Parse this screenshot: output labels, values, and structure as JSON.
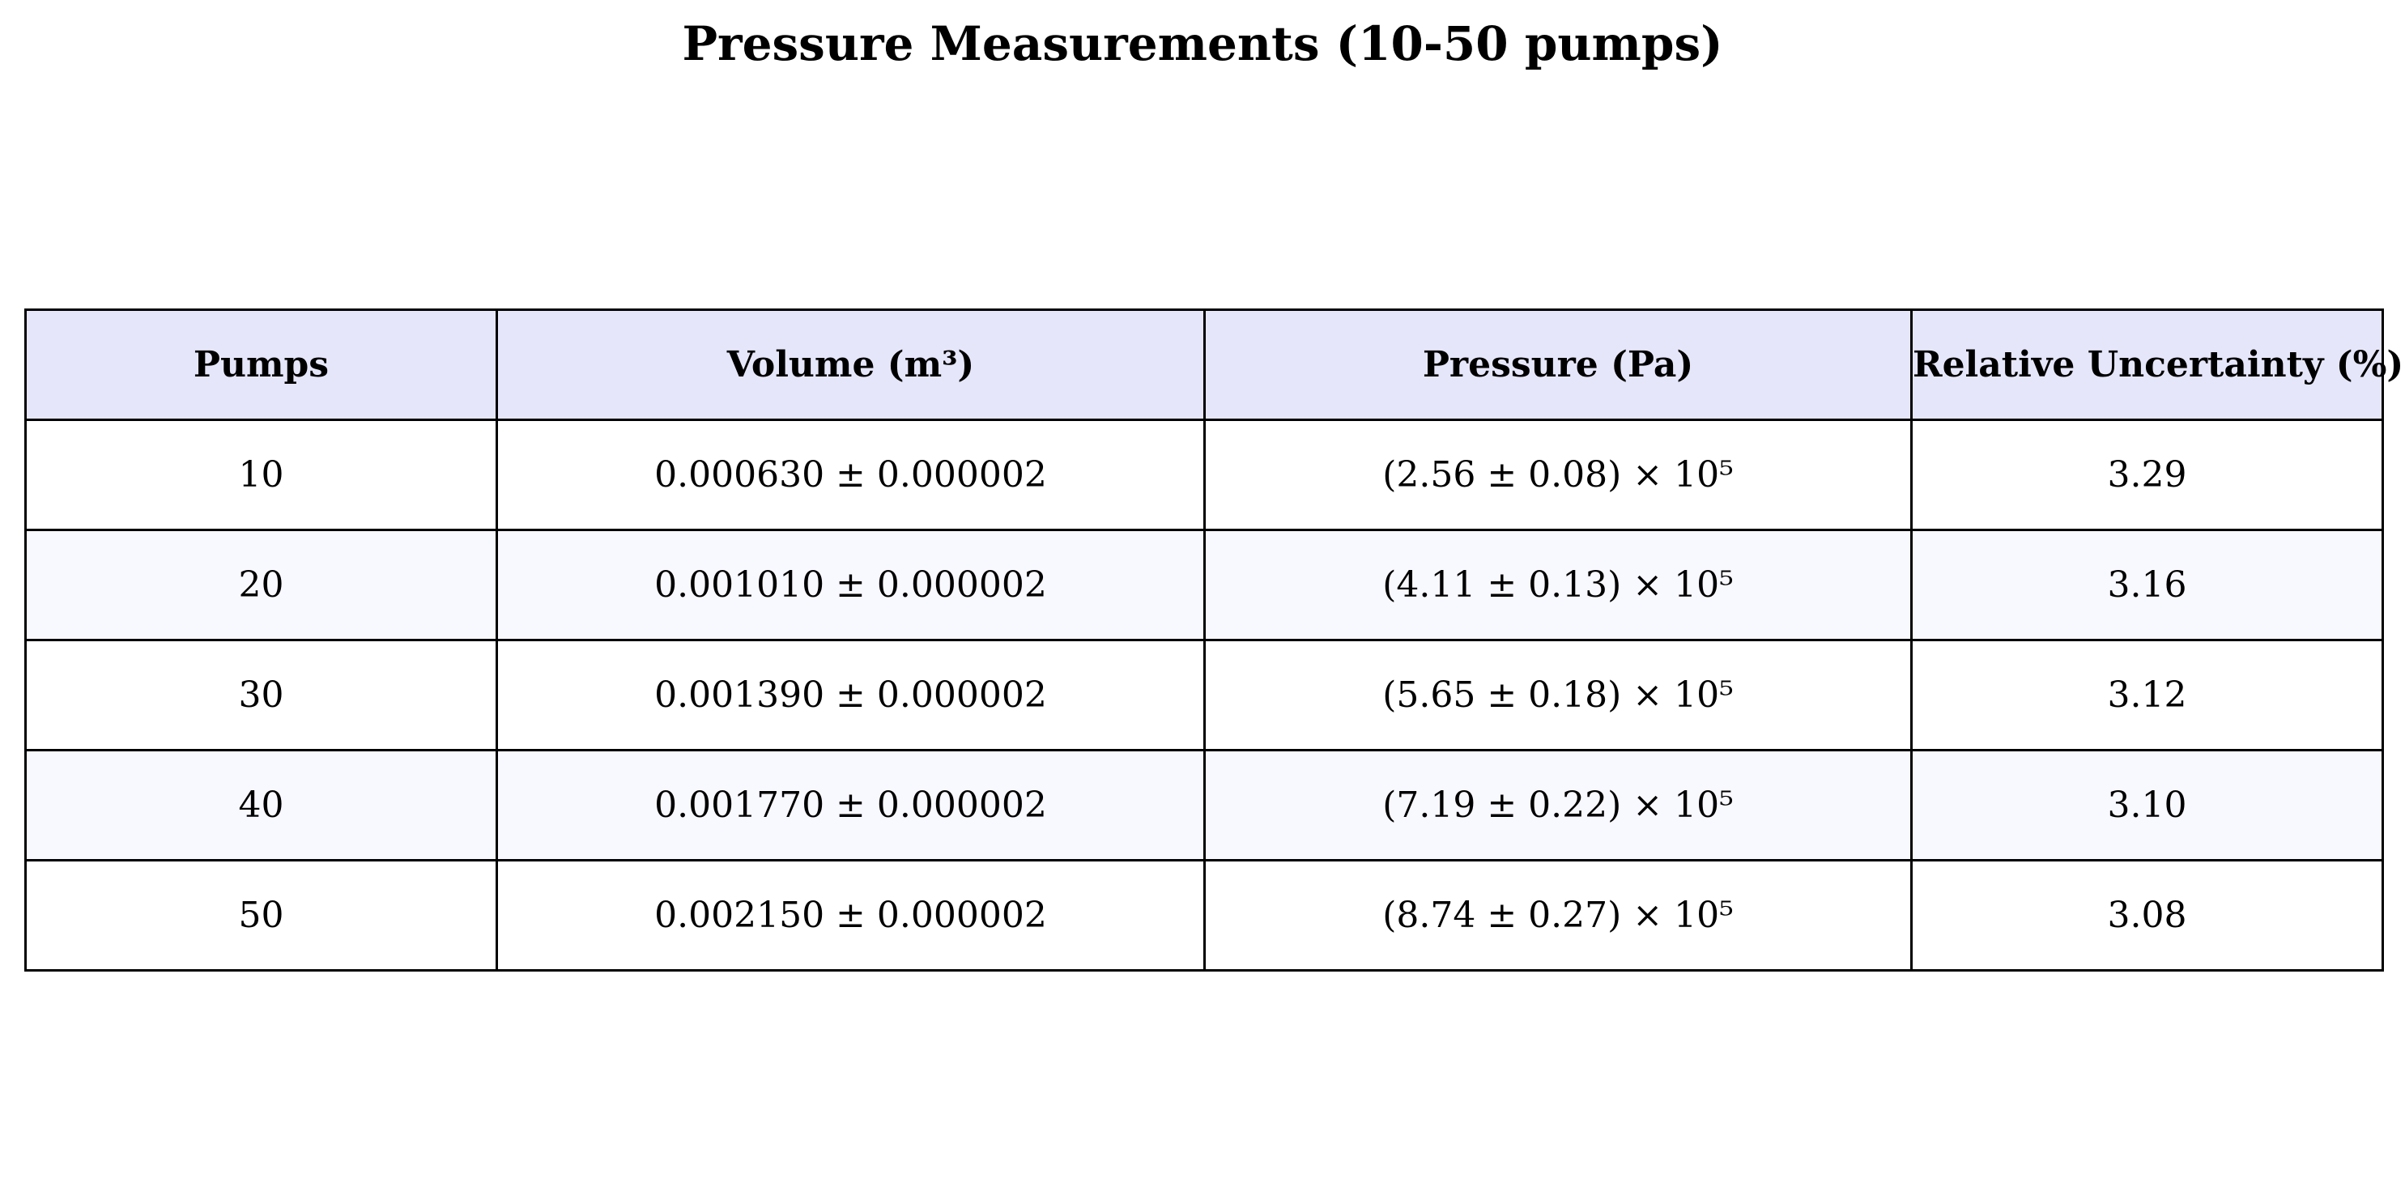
{
  "chart_data": {
    "type": "table",
    "title": "Pressure Measurements (10-50 pumps)",
    "columns": [
      "Pumps",
      "Volume (m³)",
      "Pressure (Pa)",
      "Relative Uncertainty (%)"
    ],
    "rows": [
      [
        "10",
        "0.000630 ± 0.000002",
        "(2.56 ± 0.08) × 10⁵",
        "3.29"
      ],
      [
        "20",
        "0.001010 ± 0.000002",
        "(4.11 ± 0.13) × 10⁵",
        "3.16"
      ],
      [
        "30",
        "0.001390 ± 0.000002",
        "(5.65 ± 0.18) × 10⁵",
        "3.12"
      ],
      [
        "40",
        "0.001770 ± 0.000002",
        "(7.19 ± 0.22) × 10⁵",
        "3.10"
      ],
      [
        "50",
        "0.002150 ± 0.000002",
        "(8.74 ± 0.27) × 10⁵",
        "3.08"
      ]
    ],
    "colors": {
      "header_background": "#e6e6fa",
      "odd_row_background": "#ffffff",
      "even_row_background": "#f8f8ff",
      "border": "#000000"
    }
  }
}
